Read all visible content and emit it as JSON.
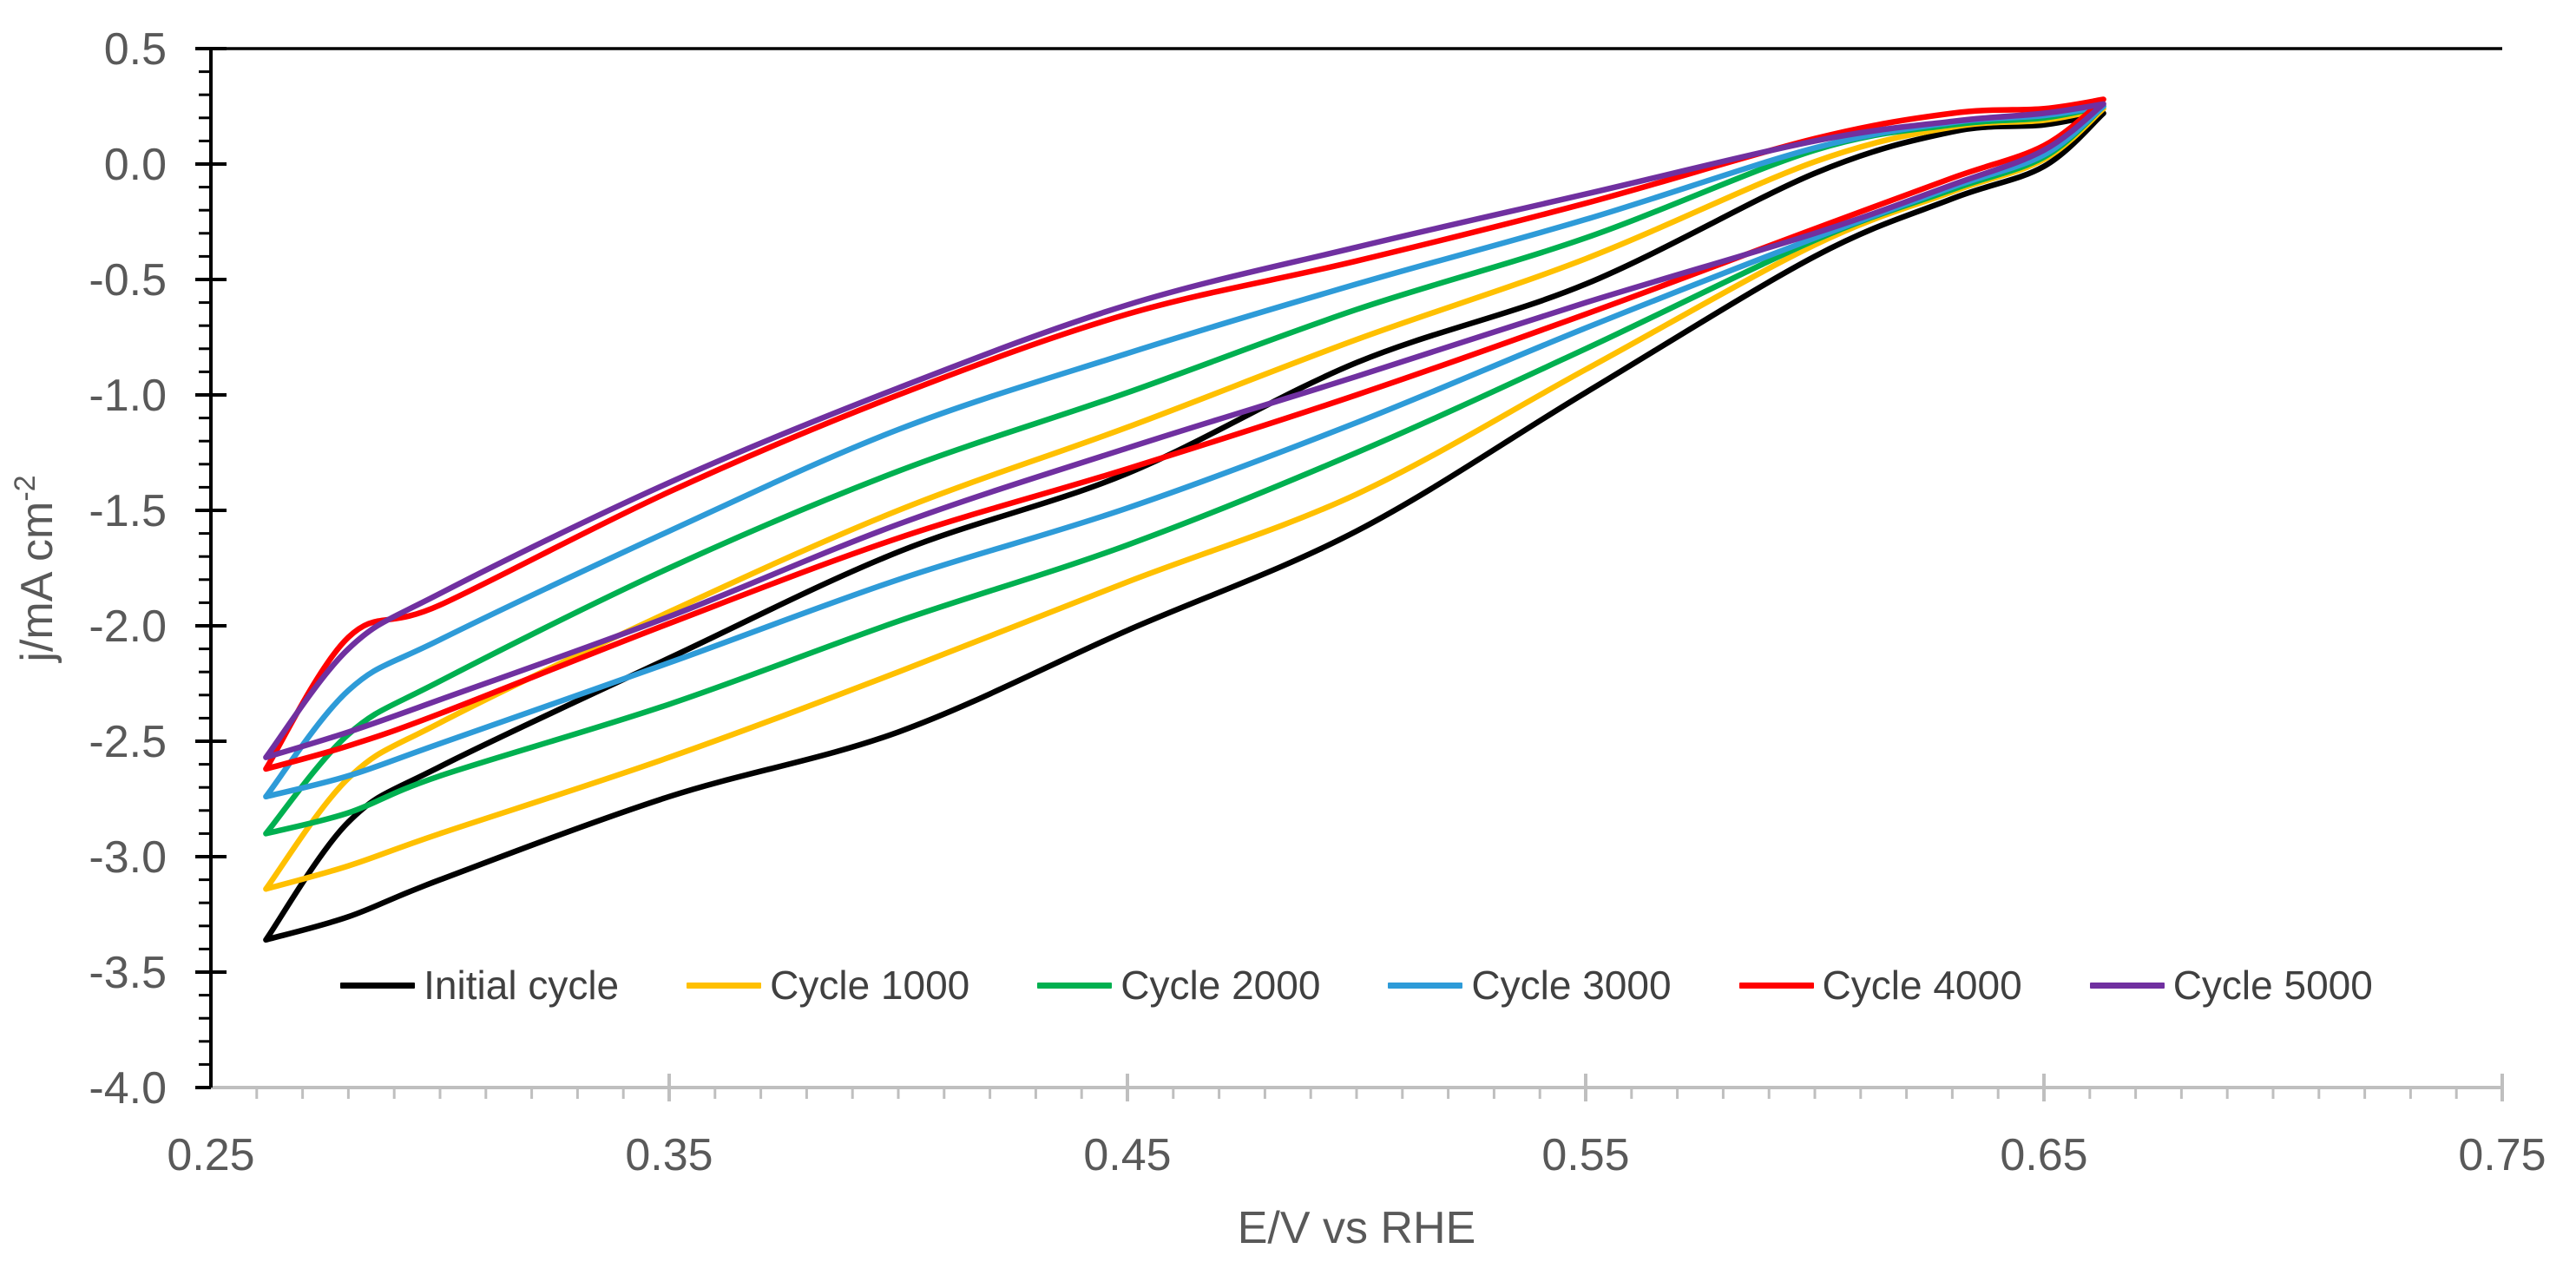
{
  "chart_data": {
    "type": "line",
    "title": "",
    "xlabel": "E/V vs RHE",
    "ylabel": "j/mA cm⁻²",
    "ylabel_base": "j/mA cm",
    "ylabel_sup": "-2",
    "xlim": [
      0.25,
      0.75
    ],
    "ylim": [
      -4.0,
      0.5
    ],
    "grid": false,
    "legend_position": "bottom-inside",
    "x_ticks": [
      0.25,
      0.35,
      0.45,
      0.55,
      0.65,
      0.75
    ],
    "x_tick_labels": [
      "0.25",
      "0.35",
      "0.45",
      "0.55",
      "0.65",
      "0.75"
    ],
    "x_minor_step": 0.01,
    "y_ticks": [
      0.5,
      0.0,
      -0.5,
      -1.0,
      -1.5,
      -2.0,
      -2.5,
      -3.0,
      -3.5,
      -4.0
    ],
    "y_tick_labels": [
      "0.5",
      "0.0",
      "-0.5",
      "-1.0",
      "-1.5",
      "-2.0",
      "-2.5",
      "-3.0",
      "-3.5",
      "-4.0"
    ],
    "y_minor_step": 0.1,
    "axis_colors": {
      "y_axis": "#000000",
      "top_border": "#000000",
      "x_axis": "#BFBFBF",
      "tick_label": "#595959",
      "legend_text": "#404040"
    },
    "x_loop": [
      0.262,
      0.28,
      0.3,
      0.35,
      0.4,
      0.45,
      0.5,
      0.55,
      0.6,
      0.63,
      0.65,
      0.663
    ],
    "series": [
      {
        "name": "Initial cycle",
        "color": "#000000",
        "lower": [
          -3.36,
          -3.26,
          -3.1,
          -2.74,
          -2.46,
          -2.02,
          -1.59,
          -0.99,
          -0.4,
          -0.15,
          -0.01,
          0.22
        ],
        "upper": [
          -3.36,
          -2.85,
          -2.61,
          -2.14,
          -1.68,
          -1.34,
          -0.86,
          -0.52,
          -0.04,
          0.14,
          0.17,
          0.22
        ]
      },
      {
        "name": "Cycle 1000",
        "color": "#FFC000",
        "lower": [
          -3.14,
          -3.04,
          -2.9,
          -2.57,
          -2.2,
          -1.81,
          -1.43,
          -0.89,
          -0.35,
          -0.12,
          0.02,
          0.24
        ],
        "upper": [
          -3.14,
          -2.66,
          -2.42,
          -1.94,
          -1.5,
          -1.14,
          -0.76,
          -0.41,
          0.01,
          0.16,
          0.19,
          0.24
        ]
      },
      {
        "name": "Cycle 2000",
        "color": "#00B050",
        "lower": [
          -2.9,
          -2.81,
          -2.65,
          -2.34,
          -1.98,
          -1.65,
          -1.25,
          -0.8,
          -0.33,
          -0.11,
          0.03,
          0.25
        ],
        "upper": [
          -2.9,
          -2.47,
          -2.24,
          -1.75,
          -1.33,
          -0.99,
          -0.63,
          -0.32,
          0.06,
          0.17,
          0.2,
          0.25
        ]
      },
      {
        "name": "Cycle 3000",
        "color": "#2E9BD8",
        "lower": [
          -2.74,
          -2.65,
          -2.51,
          -2.16,
          -1.8,
          -1.49,
          -1.12,
          -0.71,
          -0.32,
          -0.1,
          0.04,
          0.25
        ],
        "upper": [
          -2.74,
          -2.28,
          -2.06,
          -1.59,
          -1.15,
          -0.82,
          -0.52,
          -0.24,
          0.07,
          0.18,
          0.21,
          0.25
        ]
      },
      {
        "name": "Cycle 4000",
        "color": "#FF0000",
        "lower": [
          -2.62,
          -2.52,
          -2.38,
          -1.99,
          -1.62,
          -1.32,
          -1.0,
          -0.65,
          -0.28,
          -0.06,
          0.08,
          0.28
        ],
        "upper": [
          -2.62,
          -2.05,
          -1.91,
          -1.42,
          -1.0,
          -0.65,
          -0.42,
          -0.17,
          0.11,
          0.22,
          0.24,
          0.28
        ]
      },
      {
        "name": "Cycle 5000",
        "color": "#7030A0",
        "lower": [
          -2.57,
          -2.46,
          -2.32,
          -1.96,
          -1.56,
          -1.23,
          -0.92,
          -0.6,
          -0.3,
          -0.09,
          0.06,
          0.26
        ],
        "upper": [
          -2.57,
          -2.1,
          -1.86,
          -1.38,
          -0.97,
          -0.61,
          -0.36,
          -0.13,
          0.1,
          0.185,
          0.22,
          0.26
        ]
      }
    ]
  }
}
